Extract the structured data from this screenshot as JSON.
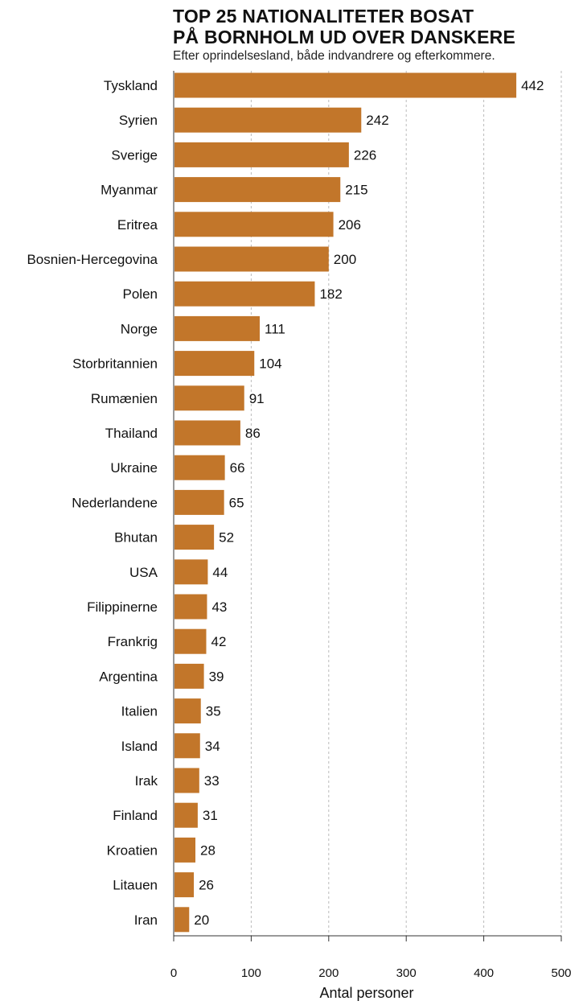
{
  "chart_data": {
    "type": "bar",
    "orientation": "horizontal",
    "title": "TOP 25 NATIONALITETER BOSAT\nPÅ BORNHOLM UD OVER DANSKERE",
    "subtitle": "Efter oprindelsesland, både indvandrere og efterkommere.",
    "xlabel": "Antal personer",
    "ylabel": "",
    "xlim": [
      0,
      500
    ],
    "xticks": [
      "0",
      "100",
      "200",
      "300",
      "400",
      "500"
    ],
    "grid": "vertical dashed",
    "bar_color": "#c2762a",
    "grid_color": "#bbbbbb",
    "categories": [
      "Tyskland",
      "Syrien",
      "Sverige",
      "Myanmar",
      "Eritrea",
      "Bosnien-Hercegovina",
      "Polen",
      "Norge",
      "Storbritannien",
      "Rumænien",
      "Thailand",
      "Ukraine",
      "Nederlandene",
      "Bhutan",
      "USA",
      "Filippinerne",
      "Frankrig",
      "Argentina",
      "Italien",
      "Island",
      "Irak",
      "Finland",
      "Kroatien",
      "Litauen",
      "Iran"
    ],
    "values": [
      442,
      242,
      226,
      215,
      206,
      200,
      182,
      111,
      104,
      91,
      86,
      66,
      65,
      52,
      44,
      43,
      42,
      39,
      35,
      34,
      33,
      31,
      28,
      26,
      20
    ],
    "value_labels": [
      "442",
      "242",
      "226",
      "215",
      "206",
      "200",
      "182",
      "111",
      "104",
      "91",
      "86",
      "66",
      "65",
      "52",
      "44",
      "43",
      "42",
      "39",
      "35",
      "34",
      "33",
      "31",
      "28",
      "26",
      "20"
    ]
  }
}
